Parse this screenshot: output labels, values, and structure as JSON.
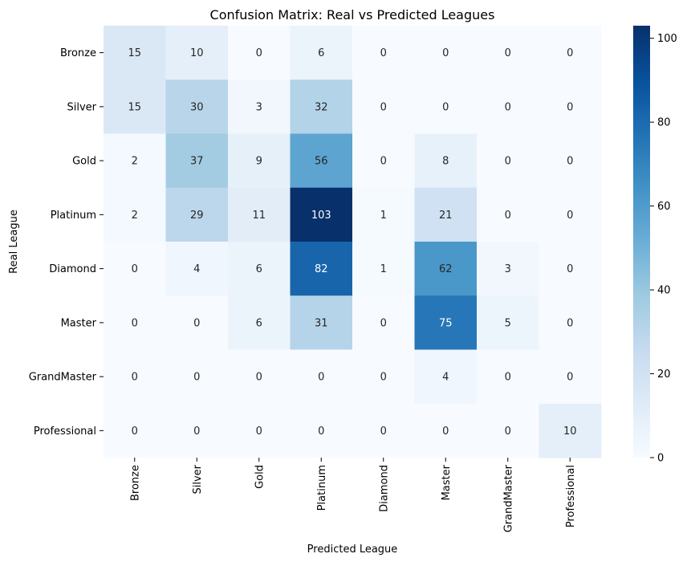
{
  "chart_data": {
    "type": "heatmap",
    "title": "Confusion Matrix: Real vs Predicted Leagues",
    "xlabel": "Predicted League",
    "ylabel": "Real League",
    "x_categories": [
      "Bronze",
      "Silver",
      "Gold",
      "Platinum",
      "Diamond",
      "Master",
      "GrandMaster",
      "Professional"
    ],
    "y_categories": [
      "Bronze",
      "Silver",
      "Gold",
      "Platinum",
      "Diamond",
      "Master",
      "GrandMaster",
      "Professional"
    ],
    "values": [
      [
        15,
        10,
        0,
        6,
        0,
        0,
        0,
        0
      ],
      [
        15,
        30,
        3,
        32,
        0,
        0,
        0,
        0
      ],
      [
        2,
        37,
        9,
        56,
        0,
        8,
        0,
        0
      ],
      [
        2,
        29,
        11,
        103,
        1,
        21,
        0,
        0
      ],
      [
        0,
        4,
        6,
        82,
        1,
        62,
        3,
        0
      ],
      [
        0,
        0,
        6,
        31,
        0,
        75,
        5,
        0
      ],
      [
        0,
        0,
        0,
        0,
        0,
        4,
        0,
        0
      ],
      [
        0,
        0,
        0,
        0,
        0,
        0,
        0,
        10
      ]
    ],
    "colorbar": {
      "min": 0,
      "max": 103,
      "ticks": [
        0,
        20,
        40,
        60,
        80,
        100
      ],
      "colormap": "Blues"
    },
    "annotations": true
  }
}
